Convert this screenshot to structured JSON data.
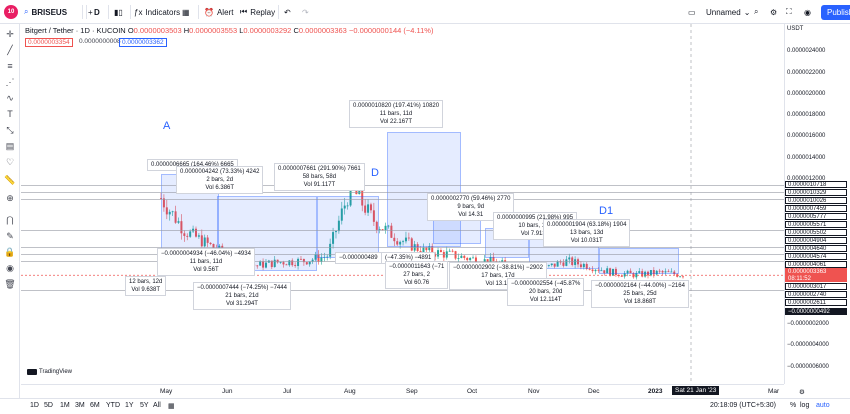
{
  "topbar": {
    "avatar_badge": "10",
    "symbol": "BRISEUS",
    "interval": "D",
    "indicators": "Indicators",
    "alert": "Alert",
    "replay": "Replay",
    "layout_name": "Unnamed",
    "publish": "Publish"
  },
  "legend": {
    "pair": "Bitgert / Tether · 1D · KUCOIN",
    "o_label": "O",
    "o": "0.0000003503",
    "h_label": "H",
    "h": "0.0000003553",
    "l_label": "L",
    "l": "0.0000003292",
    "c_label": "C",
    "c": "0.0000003363",
    "change": "−0.0000000144 (−4.11%)",
    "sell": "0.0000003354",
    "spread": "0.0000000008",
    "buy": "0.0000003362"
  },
  "waves": {
    "a": "A",
    "d": "D",
    "d1": "D1"
  },
  "labels": [
    {
      "l1": "0.0000006665 (164.46%) 6665",
      "l2": "",
      "l3": ""
    },
    {
      "l1": "0.0000004242 (73.33%) 4242",
      "l2": "2 bars, 2d",
      "l3": "Vol 6.386T"
    },
    {
      "l1": "0.0000007661 (291.90%) 7661",
      "l2": "58 bars, 58d",
      "l3": "Vol 91.117T"
    },
    {
      "l1": "0.0000010820 (197.41%) 10820",
      "l2": "11 bars, 11d",
      "l3": "Vol 22.167T"
    },
    {
      "l1": "0.0000002770 (59.46%) 2770",
      "l2": "9 bars, 9d",
      "l3": "Vol 14.31"
    },
    {
      "l1": "0.0000000995 (21.98%) 995",
      "l2": "10 bars, 10d",
      "l3": "Vol 7.913T"
    },
    {
      "l1": "0.0000001904 (63.18%) 1904",
      "l2": "13 bars, 13d",
      "l3": "Vol 10.031T"
    },
    {
      "l1": "−0.0000004934 (−46.04%) −4934",
      "l2": "11 bars, 11d",
      "l3": "Vol 9.56T"
    },
    {
      "l1": "12 bars, 12d",
      "l2": "Vol 9.638T",
      "l3": ""
    },
    {
      "l1": "−0.0000007444 (−74.25%) −7444",
      "l2": "21 bars, 21d",
      "l3": "Vol 31.294T"
    },
    {
      "l1": "−0.000000489",
      "l2": "",
      "l3": ""
    },
    {
      "l1": "(−47.35%) −4891",
      "l2": "",
      "l3": ""
    },
    {
      "l1": "−0.0000011643 (−71",
      "l2": "27 bars, 2",
      "l3": "Vol 60.76"
    },
    {
      "l1": "−0.0000002902 (−38.81%) −2902",
      "l2": "17 bars, 17d",
      "l3": "Vol 13.14"
    },
    {
      "l1": "−0.0000002554 (−45.87%",
      "l2": "20 bars, 20d",
      "l3": "Vol 12.114T"
    },
    {
      "l1": "−0.0000002164 (−44.00%) −2164",
      "l2": "25 bars, 25d",
      "l3": "Vol 18.868T"
    }
  ],
  "yaxis": {
    "currency": "USDT",
    "ticks": [
      "0.0000024000",
      "0.0000022000",
      "0.0000020000",
      "0.0000018000",
      "0.0000016000",
      "0.0000014000",
      "0.0000012000",
      "−0.0000002000",
      "−0.0000004000",
      "−0.0000006000"
    ],
    "tags": [
      "0.0000010718",
      "0.0000010329",
      "0.0000010026",
      "0.0000007459",
      "0.0000005777",
      "0.0000005571",
      "0.0000005502",
      "0.0000004904",
      "0.0000004640",
      "0.0000004574",
      "0.0000004061",
      "0.0000003363",
      "0.0000003017",
      "0.0000002740",
      "0.0000002611",
      "−0.0000000492"
    ],
    "last_price": "0.0000003363",
    "countdown": "08:11:52"
  },
  "xaxis": {
    "ticks": [
      "May",
      "Jun",
      "Jul",
      "Aug",
      "Sep",
      "Oct",
      "Nov",
      "Dec",
      "2023",
      "Mar"
    ],
    "cursor": "Sat 21 Jan '23"
  },
  "bottombar": {
    "ranges": [
      "1D",
      "5D",
      "1M",
      "3M",
      "6M",
      "YTD",
      "1Y",
      "5Y",
      "All"
    ],
    "time": "20:18:09 (UTC+5:30)",
    "pct": "%",
    "log": "log",
    "auto": "auto"
  },
  "branding": {
    "logo": "TradingView"
  },
  "chart_data": {
    "type": "candlestick",
    "x": [
      "May",
      "Jun",
      "Jul",
      "Aug",
      "Sep",
      "Oct",
      "Nov",
      "Dec",
      "2023",
      "Mar"
    ],
    "close_series": [
      1e-06,
      7.2e-07,
      6e-07,
      4.8e-07,
      4.2e-07,
      4.5e-07,
      4.6e-07,
      5e-07,
      1.1e-06,
      8e-07,
      6.5e-07,
      5.5e-07,
      5.2e-07,
      4.8e-07,
      4.5e-07,
      4e-07,
      3.8e-07,
      4.6e-07,
      4.2e-07,
      3.6e-07,
      3.4e-07,
      3.6e-07,
      3.4e-07
    ],
    "ylim": [
      -6e-07,
      2.5e-06
    ],
    "last": 3.363e-07
  }
}
